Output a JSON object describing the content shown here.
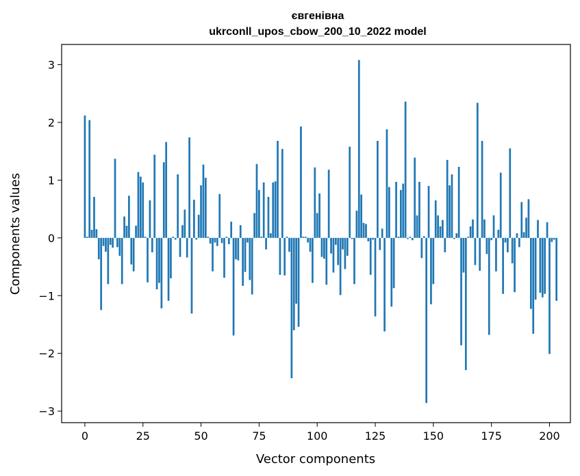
{
  "chart_data": {
    "type": "bar",
    "title_line1": "євгенівна",
    "title_line2": "ukrconll_upos_cbow_200_10_2022 model",
    "xlabel": "Vector components",
    "ylabel": "Components values",
    "xlim": [
      -10,
      209
    ],
    "ylim": [
      -3.2,
      3.35
    ],
    "xticks": [
      0,
      25,
      50,
      75,
      100,
      125,
      150,
      175,
      200
    ],
    "xtick_labels": [
      "0",
      "25",
      "50",
      "75",
      "100",
      "125",
      "150",
      "175",
      "200"
    ],
    "yticks": [
      3,
      2,
      1,
      0,
      -1,
      -2,
      -3
    ],
    "ytick_labels": [
      "3",
      "2",
      "1",
      "0",
      "−1",
      "−2",
      "−3"
    ],
    "bar_color": "#1f77b4",
    "grid": false,
    "values": [
      2.12,
      0.02,
      2.04,
      0.14,
      0.71,
      0.15,
      -0.37,
      -1.25,
      -0.14,
      -0.24,
      -0.8,
      -0.12,
      -0.17,
      1.37,
      -0.16,
      -0.31,
      -0.8,
      0.37,
      0.21,
      0.73,
      -0.46,
      -0.58,
      0.21,
      1.14,
      1.06,
      0.96,
      0.02,
      -0.77,
      0.65,
      -0.25,
      1.44,
      -0.89,
      -0.78,
      -1.22,
      1.31,
      1.66,
      -1.09,
      -0.7,
      0.02,
      -0.03,
      1.1,
      -0.33,
      0.22,
      0.49,
      -0.34,
      1.74,
      -1.31,
      0.66,
      -0.03,
      0.4,
      0.91,
      1.27,
      1.04,
      0.02,
      -0.1,
      -0.58,
      -0.08,
      -0.14,
      0.76,
      -0.09,
      -0.69,
      0.02,
      -0.11,
      0.28,
      -1.69,
      -0.37,
      -0.39,
      0.22,
      -0.83,
      -0.59,
      -0.08,
      -0.73,
      -0.98,
      0.43,
      1.28,
      0.83,
      0.02,
      0.96,
      -0.2,
      0.71,
      0.08,
      0.96,
      0.98,
      1.68,
      -0.64,
      1.54,
      -0.65,
      0.02,
      -0.24,
      -2.43,
      -1.6,
      -1.14,
      -1.54,
      1.93,
      0.02,
      0.02,
      -0.08,
      -0.24,
      -0.78,
      1.22,
      0.43,
      0.77,
      -0.33,
      -0.36,
      -0.81,
      1.18,
      -0.27,
      -0.6,
      -0.12,
      -0.47,
      -0.99,
      -0.2,
      -0.54,
      -0.31,
      1.58,
      -0.02,
      -0.8,
      0.47,
      3.08,
      0.75,
      0.26,
      0.24,
      -0.06,
      -0.64,
      -0.03,
      -1.36,
      1.68,
      -0.21,
      0.16,
      -1.62,
      1.88,
      0.88,
      -1.19,
      -0.87,
      0.97,
      0.02,
      0.83,
      0.94,
      2.36,
      -0.02,
      0.02,
      -0.04,
      1.39,
      0.39,
      0.97,
      -0.35,
      0.03,
      -2.86,
      0.9,
      -1.15,
      -0.8,
      0.65,
      0.39,
      0.2,
      0.31,
      -0.25,
      1.35,
      0.91,
      1.1,
      -0.02,
      0.08,
      1.23,
      -1.86,
      -0.6,
      -2.29,
      0.02,
      0.2,
      0.32,
      -0.47,
      2.34,
      -0.57,
      1.68,
      0.32,
      -0.28,
      -1.68,
      -0.04,
      0.39,
      -0.58,
      0.14,
      1.13,
      -0.97,
      -0.08,
      -0.25,
      1.55,
      -0.44,
      -0.94,
      0.08,
      -0.16,
      0.62,
      0.1,
      0.35,
      0.67,
      -1.23,
      -1.66,
      -1.07,
      0.31,
      -0.95,
      -1.03,
      -0.97,
      0.27,
      -2.01,
      -0.07,
      -0.03,
      -1.09
    ]
  }
}
